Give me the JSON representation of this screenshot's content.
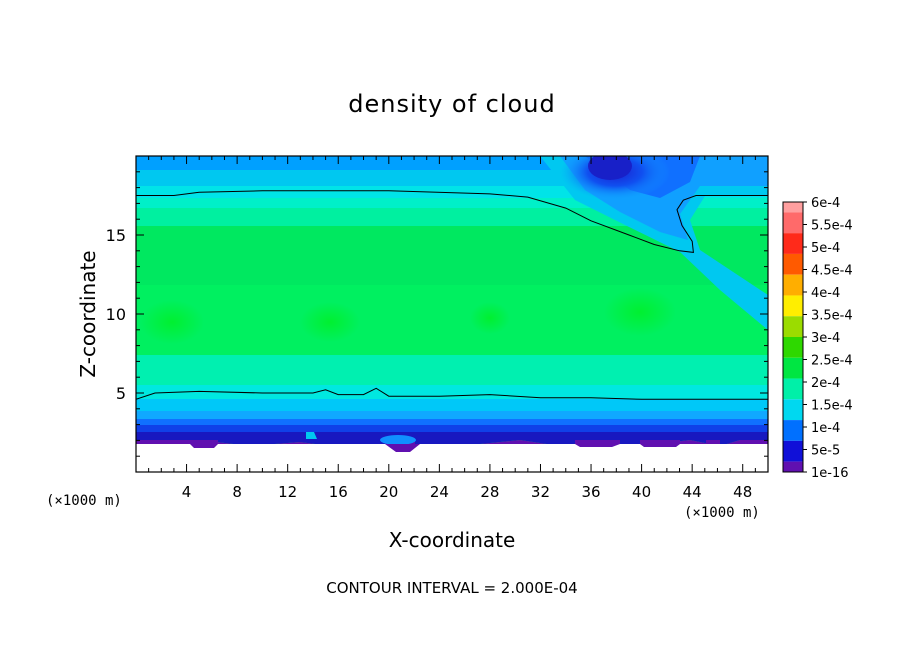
{
  "chart_data": {
    "type": "heatmap",
    "title": "density of cloud",
    "xlabel": "X-coordinate",
    "ylabel": "Z-coordinate",
    "x_unit": "(×1000 m)",
    "y_unit": "(×1000 m)",
    "footer": "CONTOUR INTERVAL = 2.000E-04",
    "xlim": [
      0,
      50
    ],
    "ylim": [
      0,
      20
    ],
    "x_ticks": [
      4,
      8,
      12,
      16,
      20,
      24,
      28,
      32,
      36,
      40,
      44,
      48
    ],
    "y_ticks": [
      5,
      10,
      15
    ],
    "colorbar": {
      "labels": [
        "6e-4",
        "5.5e-4",
        "5e-4",
        "4.5e-4",
        "4e-4",
        "3.5e-4",
        "3e-4",
        "2.5e-4",
        "2e-4",
        "1.5e-4",
        "1e-4",
        "5e-5",
        "1e-16"
      ],
      "colors": [
        "#ff9f9f",
        "#ff6a6a",
        "#ff2a1a",
        "#ff5a00",
        "#ffae00",
        "#ffee00",
        "#9bdc00",
        "#2ed800",
        "#00e642",
        "#00f0a8",
        "#00d8f0",
        "#0070ff",
        "#1010d8",
        "#6010b0"
      ]
    },
    "contour_lines": [
      {
        "value": "2e-4",
        "points": [
          [
            0,
            4.6
          ],
          [
            1.5,
            5.0
          ],
          [
            5,
            5.1
          ],
          [
            10,
            5.0
          ],
          [
            14,
            5.0
          ],
          [
            15,
            5.2
          ],
          [
            16,
            4.9
          ],
          [
            18,
            4.9
          ],
          [
            19,
            5.3
          ],
          [
            20,
            4.8
          ],
          [
            24,
            4.8
          ],
          [
            28,
            4.9
          ],
          [
            32,
            4.7
          ],
          [
            36,
            4.7
          ],
          [
            40,
            4.6
          ],
          [
            44,
            4.6
          ],
          [
            48,
            4.6
          ],
          [
            50,
            4.6
          ]
        ]
      },
      {
        "value": "2e-4",
        "points": [
          [
            0,
            17.5
          ],
          [
            3,
            17.5
          ],
          [
            5,
            17.7
          ],
          [
            10,
            17.8
          ],
          [
            20,
            17.8
          ],
          [
            28,
            17.6
          ],
          [
            31,
            17.4
          ],
          [
            34,
            16.7
          ],
          [
            36,
            15.9
          ],
          [
            39,
            15.0
          ],
          [
            41,
            14.4
          ],
          [
            43,
            14.0
          ],
          [
            44.1,
            13.9
          ],
          [
            44,
            14.6
          ],
          [
            43.2,
            15.6
          ],
          [
            42.8,
            16.6
          ],
          [
            43.3,
            17.2
          ],
          [
            44.3,
            17.5
          ],
          [
            48,
            17.5
          ],
          [
            50,
            17.5
          ]
        ]
      }
    ]
  }
}
